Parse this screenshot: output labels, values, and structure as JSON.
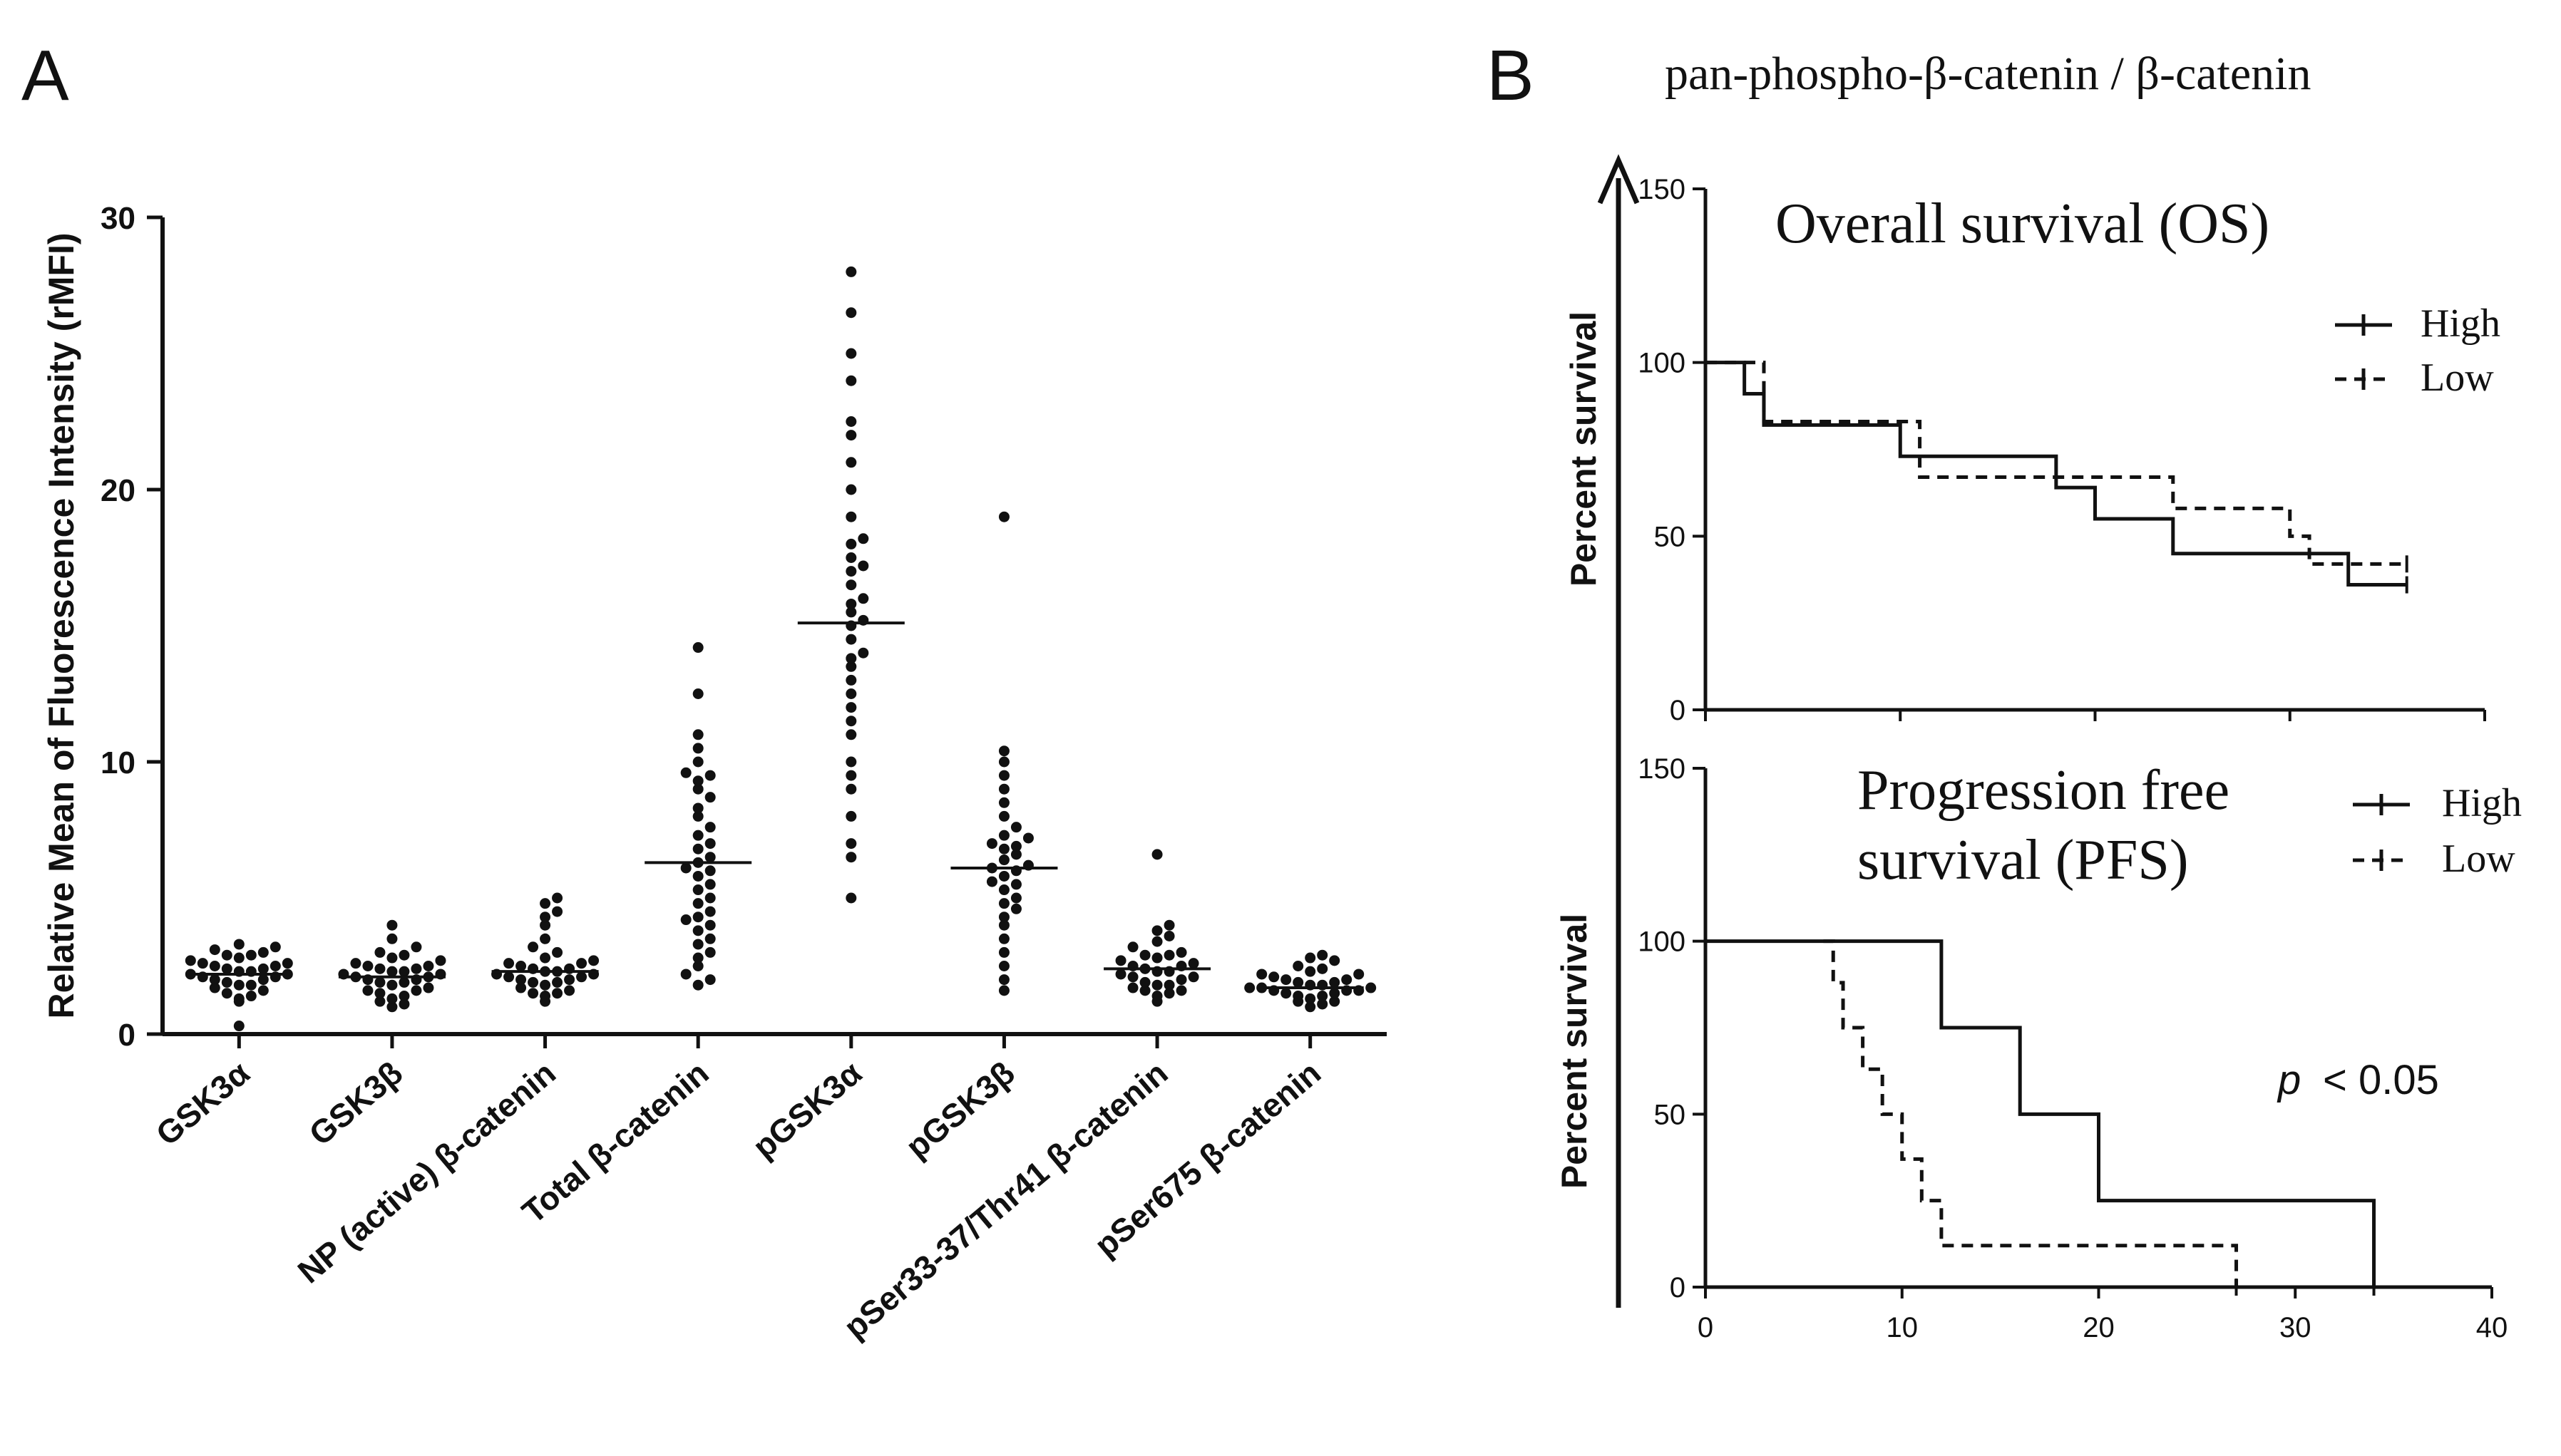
{
  "panels": {
    "a_letter": "A",
    "b_letter": "B",
    "b_title": "pan-phospho-β-catenin / β-catenin"
  },
  "chart_data": [
    {
      "type": "scatter",
      "subtype": "dot-plot with median line",
      "ylabel": "Relative Mean of Fluorescence Intensity (rMFI)",
      "xlabel": "",
      "ylim": [
        0,
        30
      ],
      "yticks": [
        0,
        10,
        20,
        30
      ],
      "categories": [
        "GSK3α",
        "GSK3β",
        "NP (active) β-catenin",
        "Total β-catenin",
        "pGSK3α",
        "pGSK3β",
        "pSer33-37/Thr41 β-catenin",
        "pSer675 β-catenin"
      ],
      "medians": [
        2.2,
        2.1,
        2.3,
        6.3,
        15.1,
        6.1,
        2.4,
        1.7
      ],
      "points": [
        [
          0.3,
          1.3,
          1.5,
          1.6,
          1.7,
          1.8,
          1.9,
          2.0,
          2.1,
          2.1,
          2.2,
          2.2,
          2.3,
          2.3,
          2.4,
          2.5,
          2.5,
          2.6,
          2.7,
          2.8,
          2.9,
          3.0,
          3.1,
          3.2,
          1.8,
          2.0,
          2.4,
          2.6,
          1.4,
          2.9,
          1.2,
          3.3
        ],
        [
          1.0,
          1.2,
          1.3,
          1.5,
          1.6,
          1.7,
          1.8,
          1.9,
          2.0,
          2.0,
          2.1,
          2.1,
          2.2,
          2.3,
          2.3,
          2.4,
          2.5,
          2.6,
          2.7,
          2.8,
          3.0,
          3.2,
          3.5,
          4.0,
          1.6,
          1.9,
          2.2,
          2.5,
          1.4,
          2.9,
          1.1,
          2.4
        ],
        [
          1.2,
          1.4,
          1.5,
          1.6,
          1.7,
          1.8,
          1.9,
          2.0,
          2.1,
          2.2,
          2.2,
          2.3,
          2.4,
          2.5,
          2.6,
          2.7,
          2.8,
          3.0,
          3.2,
          3.5,
          4.0,
          4.3,
          4.5,
          4.8,
          5.0,
          1.9,
          2.1,
          2.4,
          2.6,
          1.5,
          2.3,
          2.0
        ],
        [
          1.8,
          2.0,
          2.2,
          2.5,
          2.8,
          3.0,
          3.3,
          3.5,
          3.8,
          4.0,
          4.3,
          4.5,
          4.8,
          5.0,
          5.3,
          5.5,
          5.8,
          6.0,
          6.3,
          6.5,
          6.8,
          7.0,
          7.3,
          7.6,
          8.0,
          8.3,
          8.7,
          9.0,
          9.3,
          9.5,
          9.6,
          10.0,
          10.5,
          11.0,
          12.5,
          14.2,
          6.1,
          4.2
        ],
        [
          5.0,
          6.5,
          7.0,
          8.0,
          9.0,
          9.5,
          10.0,
          11.0,
          11.5,
          12.0,
          12.5,
          13.0,
          13.5,
          14.0,
          14.5,
          15.0,
          15.2,
          15.5,
          16.0,
          16.5,
          17.0,
          17.5,
          18.0,
          19.0,
          20.0,
          21.0,
          22.0,
          22.5,
          24.0,
          25.0,
          26.5,
          28.0,
          13.8,
          15.8,
          17.2,
          18.2
        ],
        [
          1.6,
          2.0,
          2.5,
          3.0,
          3.5,
          4.0,
          4.3,
          4.6,
          5.0,
          5.3,
          5.5,
          5.8,
          6.0,
          6.2,
          6.4,
          6.6,
          6.8,
          7.0,
          7.3,
          7.6,
          8.0,
          8.5,
          9.0,
          9.5,
          10.0,
          10.4,
          19.0,
          5.6,
          6.1,
          6.9,
          4.8,
          7.2
        ],
        [
          1.2,
          1.4,
          1.5,
          1.6,
          1.7,
          1.8,
          1.9,
          2.0,
          2.1,
          2.2,
          2.3,
          2.4,
          2.5,
          2.6,
          2.7,
          2.8,
          2.9,
          3.0,
          3.2,
          3.4,
          3.6,
          3.8,
          4.0,
          6.6,
          1.8,
          2.1,
          2.5,
          2.9,
          1.6,
          2.3
        ],
        [
          1.0,
          1.1,
          1.2,
          1.3,
          1.4,
          1.5,
          1.5,
          1.6,
          1.6,
          1.7,
          1.7,
          1.8,
          1.8,
          1.9,
          2.0,
          2.1,
          2.2,
          2.3,
          2.4,
          2.5,
          2.7,
          2.8,
          2.9,
          1.4,
          1.6,
          1.9,
          2.0,
          1.2,
          1.7,
          2.2
        ]
      ]
    },
    {
      "type": "line",
      "subtype": "kaplan-meier step",
      "title": "Overall survival (OS)",
      "ylabel": "Percent survival",
      "xlim": [
        0,
        40
      ],
      "ylim": [
        0,
        150
      ],
      "yticks": [
        "0",
        "50",
        "100",
        "150"
      ],
      "legend": [
        "High",
        "Low"
      ],
      "series": [
        {
          "name": "High",
          "style": "solid",
          "x": [
            0,
            1,
            2,
            3,
            10,
            18,
            20,
            24,
            33,
            36
          ],
          "y": [
            100,
            100,
            91,
            82,
            73,
            64,
            55,
            45,
            36,
            36
          ]
        },
        {
          "name": "Low",
          "style": "dashed",
          "x": [
            0,
            2,
            3,
            10,
            11,
            21,
            24,
            30,
            31,
            36
          ],
          "y": [
            100,
            100,
            83,
            83,
            67,
            67,
            58,
            50,
            42,
            42
          ]
        }
      ]
    },
    {
      "type": "line",
      "subtype": "kaplan-meier step",
      "title": "Progression free survival (PFS)",
      "title_lines": [
        "Progression free",
        "survival (PFS)"
      ],
      "ylabel": "Percent survival",
      "xlim": [
        0,
        40
      ],
      "ylim": [
        0,
        150
      ],
      "yticks": [
        "0",
        "50",
        "100",
        "150"
      ],
      "xticks": [
        "0",
        "10",
        "20",
        "30",
        "40"
      ],
      "legend": [
        "High",
        "Low"
      ],
      "annotation_p": "p",
      "annotation_val": "< 0.05",
      "series": [
        {
          "name": "High",
          "style": "solid",
          "x": [
            0,
            12,
            16,
            20,
            34,
            34
          ],
          "y": [
            100,
            75,
            50,
            25,
            0,
            0
          ]
        },
        {
          "name": "Low",
          "style": "dashed",
          "x": [
            6,
            6.5,
            7,
            8,
            9,
            10,
            11,
            12,
            27,
            27
          ],
          "y": [
            100,
            88,
            75,
            63,
            50,
            37,
            25,
            12,
            0,
            0
          ]
        }
      ]
    }
  ]
}
